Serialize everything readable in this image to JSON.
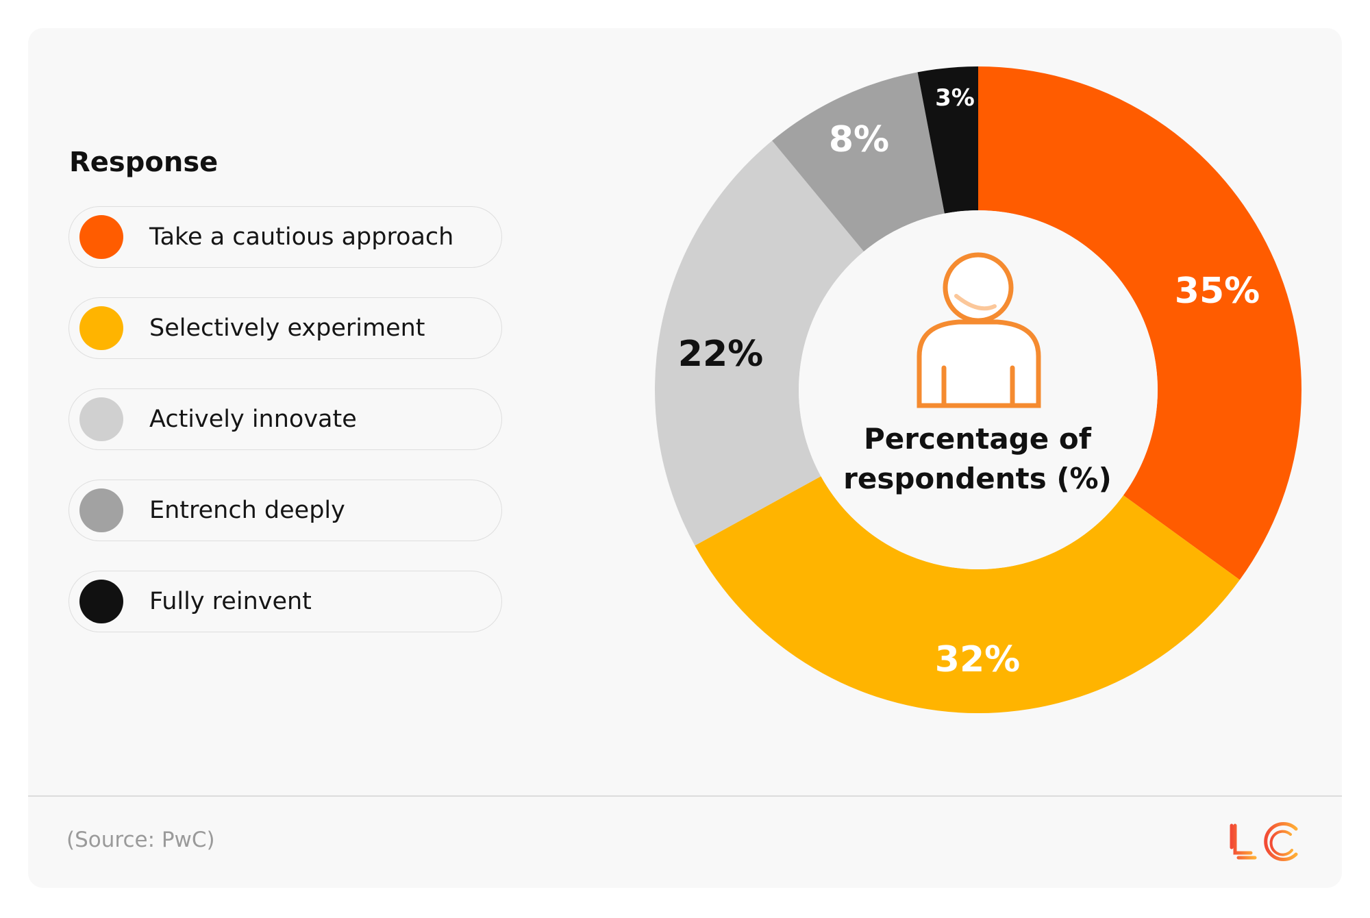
{
  "chart_data": {
    "type": "pie",
    "variant": "donut",
    "legend_title": "Response",
    "legend_placement": "left",
    "center_label": "Percentage of respondents (%)",
    "categories": [
      "Take a cautious approach",
      "Selectively experiment",
      "Actively innovate",
      "Entrench deeply",
      "Fully reinvent"
    ],
    "values": [
      35,
      32,
      22,
      8,
      3
    ],
    "data_labels": [
      "35%",
      "32%",
      "22%",
      "8%",
      "3%"
    ],
    "colors": [
      "#ff5c00",
      "#ffb400",
      "#d0d0d0",
      "#a2a2a2",
      "#111111"
    ],
    "label_colors": [
      "#ffffff",
      "#ffffff",
      "#111111",
      "#ffffff",
      "#ffffff"
    ]
  },
  "center_icon": "person-icon",
  "footer": {
    "source": "(Source: PwC)",
    "logo_text": "LC"
  }
}
